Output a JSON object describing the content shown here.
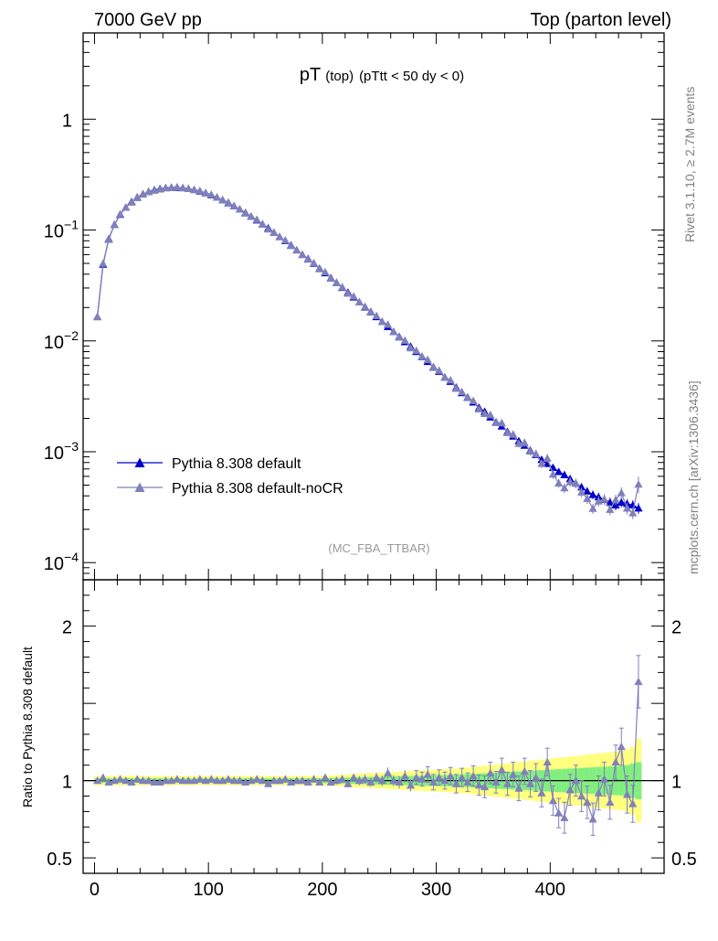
{
  "header": {
    "left": "7000 GeV pp",
    "right": "Top (parton level)"
  },
  "title": {
    "main": "pT",
    "sub1": "(top)",
    "sub2": "(pTtt < 50 dy < 0)"
  },
  "watermark": "(MC_FBA_TTBAR)",
  "side_text": {
    "rivet": "Rivet 3.1.10, ≥ 2.7M events",
    "mcplots": "mcplots.cern.ch [arXiv:1306.3436]"
  },
  "colors": {
    "default": "#0000cc",
    "nocr": "#8080bb",
    "band_outer": "#ffff80",
    "band_inner": "#80ee80"
  },
  "chart_data": [
    {
      "type": "line",
      "scale": "log",
      "xlim": [
        -10,
        500
      ],
      "ylim": [
        7e-05,
        6
      ],
      "yticks": [
        "10^-4",
        "10^-3",
        "10^-2",
        "10^-1",
        "1"
      ],
      "legend": {
        "placement": "bottom-left",
        "entries": [
          "Pythia 8.308 default",
          "Pythia 8.308 default-noCR"
        ]
      },
      "series": [
        {
          "name": "Pythia 8.308 default",
          "x": [
            2.5,
            7.5,
            12.5,
            17.5,
            22.5,
            27.5,
            32.5,
            37.5,
            42.5,
            47.5,
            52.5,
            57.5,
            62.5,
            67.5,
            72.5,
            77.5,
            82.5,
            87.5,
            92.5,
            97.5,
            102.5,
            107.5,
            112.5,
            117.5,
            122.5,
            127.5,
            132.5,
            137.5,
            142.5,
            147.5,
            152.5,
            157.5,
            162.5,
            167.5,
            172.5,
            177.5,
            182.5,
            187.5,
            192.5,
            197.5,
            202.5,
            207.5,
            212.5,
            217.5,
            222.5,
            227.5,
            232.5,
            237.5,
            242.5,
            247.5,
            252.5,
            257.5,
            262.5,
            267.5,
            272.5,
            277.5,
            282.5,
            287.5,
            292.5,
            297.5,
            302.5,
            307.5,
            312.5,
            317.5,
            322.5,
            327.5,
            332.5,
            337.5,
            342.5,
            347.5,
            352.5,
            357.5,
            362.5,
            367.5,
            372.5,
            377.5,
            382.5,
            387.5,
            392.5,
            397.5,
            402.5,
            407.5,
            412.5,
            417.5,
            422.5,
            427.5,
            432.5,
            437.5,
            442.5,
            447.5,
            452.5,
            457.5,
            462.5,
            467.5,
            472.5,
            477.5
          ],
          "values": [
            0.0165,
            0.049,
            0.083,
            0.112,
            0.138,
            0.16,
            0.18,
            0.197,
            0.211,
            0.222,
            0.23,
            0.236,
            0.24,
            0.242,
            0.242,
            0.24,
            0.236,
            0.231,
            0.224,
            0.216,
            0.207,
            0.197,
            0.187,
            0.176,
            0.165,
            0.154,
            0.143,
            0.133,
            0.123,
            0.113,
            0.104,
            0.095,
            0.087,
            0.08,
            0.073,
            0.066,
            0.06,
            0.055,
            0.05,
            0.045,
            0.041,
            0.037,
            0.0335,
            0.0303,
            0.0274,
            0.0248,
            0.0224,
            0.0202,
            0.0183,
            0.0165,
            0.0149,
            0.0134,
            0.0121,
            0.0109,
            0.0098,
            0.0089,
            0.008,
            0.0072,
            0.0065,
            0.0058,
            0.0053,
            0.0047,
            0.0043,
            0.0038,
            0.0034,
            0.0031,
            0.0028,
            0.0025,
            0.0023,
            0.00205,
            0.00185,
            0.0017,
            0.00152,
            0.00138,
            0.00125,
            0.00114,
            0.00103,
            0.00094,
            0.00085,
            0.00078,
            0.00072,
            0.00066,
            0.00062,
            0.00057,
            0.00052,
            0.00048,
            0.00044,
            0.00041,
            0.00039,
            0.00037,
            0.00035,
            0.00033,
            0.00035,
            0.00034,
            0.00033,
            0.00031
          ],
          "errors": [
            0.0003,
            0.0006,
            0.0008,
            0.001,
            0.001,
            0.0012,
            0.0013,
            0.0014,
            0.0014,
            0.0015,
            0.0015,
            0.0015,
            0.0015,
            0.0015,
            0.0015,
            0.0015,
            0.0015,
            0.0015,
            0.0015,
            0.0015,
            0.0014,
            0.0014,
            0.0014,
            0.0013,
            0.0013,
            0.0012,
            0.0012,
            0.0011,
            0.0011,
            0.001,
            0.001,
            0.0009,
            0.0009,
            0.0008,
            0.0008,
            0.0007,
            0.0007,
            0.0006,
            0.0006,
            0.0006,
            0.0005,
            0.0005,
            0.00045,
            0.00042,
            0.0004,
            0.00037,
            0.00035,
            0.00032,
            0.0003,
            0.00028,
            0.00026,
            0.00025,
            0.00023,
            0.00022,
            0.0002,
            0.00019,
            0.00018,
            0.00017,
            0.00016,
            0.00015,
            0.00014,
            0.00013,
            0.00012,
            0.00011,
            0.000105,
            0.0001,
            9.5e-05,
            9e-05,
            8.5e-05,
            8e-05,
            7.5e-05,
            7e-05,
            6.6e-05,
            6.3e-05,
            6e-05,
            5.7e-05,
            5.4e-05,
            5.2e-05,
            5e-05,
            4.8e-05,
            4.6e-05,
            4.4e-05,
            4.3e-05,
            4.2e-05,
            4e-05,
            3.9e-05,
            3.8e-05,
            3.7e-05,
            3.6e-05,
            3.5e-05,
            3.5e-05,
            3.4e-05,
            3.5e-05,
            3.4e-05,
            3.4e-05,
            3.4e-05
          ]
        },
        {
          "name": "Pythia 8.308 default-noCR",
          "x": [
            2.5,
            7.5,
            12.5,
            17.5,
            22.5,
            27.5,
            32.5,
            37.5,
            42.5,
            47.5,
            52.5,
            57.5,
            62.5,
            67.5,
            72.5,
            77.5,
            82.5,
            87.5,
            92.5,
            97.5,
            102.5,
            107.5,
            112.5,
            117.5,
            122.5,
            127.5,
            132.5,
            137.5,
            142.5,
            147.5,
            152.5,
            157.5,
            162.5,
            167.5,
            172.5,
            177.5,
            182.5,
            187.5,
            192.5,
            197.5,
            202.5,
            207.5,
            212.5,
            217.5,
            222.5,
            227.5,
            232.5,
            237.5,
            242.5,
            247.5,
            252.5,
            257.5,
            262.5,
            267.5,
            272.5,
            277.5,
            282.5,
            287.5,
            292.5,
            297.5,
            302.5,
            307.5,
            312.5,
            317.5,
            322.5,
            327.5,
            332.5,
            337.5,
            342.5,
            347.5,
            352.5,
            357.5,
            362.5,
            367.5,
            372.5,
            377.5,
            382.5,
            387.5,
            392.5,
            397.5,
            402.5,
            407.5,
            412.5,
            417.5,
            422.5,
            427.5,
            432.5,
            437.5,
            442.5,
            447.5,
            452.5,
            457.5,
            462.5,
            467.5,
            472.5,
            477.5
          ],
          "ratio": [
            1.0,
            1.02,
            0.99,
            1.0,
            1.01,
            1.0,
            0.99,
            1.01,
            1.0,
            1.0,
            0.99,
            0.99,
            1.0,
            1.0,
            1.01,
            1.0,
            1.0,
            1.0,
            1.01,
            1.0,
            1.01,
            1.0,
            1.0,
            1.01,
            1.0,
            1.0,
            0.99,
            1.0,
            1.01,
            1.0,
            0.98,
            1.0,
            1.0,
            1.01,
            0.99,
            1.0,
            1.0,
            0.99,
            1.01,
            0.99,
            1.02,
            0.99,
            1.0,
            1.01,
            0.98,
            1.02,
            1.0,
            1.01,
            0.99,
            1.02,
            1.0,
            1.05,
            1.0,
            0.99,
            1.03,
            0.97,
            1.02,
            1.01,
            1.04,
            0.99,
            1.02,
            1.0,
            1.03,
            0.98,
            1.02,
            0.99,
            1.03,
            0.97,
            0.96,
            1.05,
            0.99,
            1.07,
            0.98,
            1.04,
            0.95,
            1.06,
            0.98,
            1.02,
            0.92,
            1.12,
            0.87,
            0.79,
            0.76,
            0.94,
            1.0,
            0.9,
            0.86,
            0.75,
            0.92,
            1.01,
            0.86,
            1.12,
            1.22,
            0.91,
            0.85,
            1.64
          ],
          "ratio_err": [
            0.02,
            0.02,
            0.02,
            0.02,
            0.02,
            0.02,
            0.02,
            0.02,
            0.02,
            0.02,
            0.02,
            0.02,
            0.02,
            0.02,
            0.02,
            0.02,
            0.02,
            0.02,
            0.02,
            0.02,
            0.02,
            0.02,
            0.02,
            0.02,
            0.02,
            0.02,
            0.02,
            0.02,
            0.02,
            0.02,
            0.02,
            0.02,
            0.02,
            0.02,
            0.02,
            0.02,
            0.02,
            0.02,
            0.02,
            0.02,
            0.02,
            0.025,
            0.025,
            0.025,
            0.025,
            0.025,
            0.03,
            0.03,
            0.03,
            0.03,
            0.035,
            0.035,
            0.035,
            0.04,
            0.04,
            0.04,
            0.045,
            0.045,
            0.05,
            0.05,
            0.05,
            0.055,
            0.055,
            0.06,
            0.06,
            0.06,
            0.065,
            0.065,
            0.07,
            0.07,
            0.07,
            0.075,
            0.075,
            0.08,
            0.08,
            0.085,
            0.085,
            0.09,
            0.09,
            0.09,
            0.095,
            0.095,
            0.1,
            0.1,
            0.1,
            0.1,
            0.105,
            0.105,
            0.11,
            0.11,
            0.11,
            0.11,
            0.12,
            0.12,
            0.12,
            0.17
          ]
        }
      ]
    },
    {
      "type": "line",
      "ylabel": "Ratio to Pythia 8.308 default",
      "xlim": [
        -10,
        500
      ],
      "ylim": [
        0.4,
        2.3
      ],
      "yticks": [
        0.5,
        1,
        2
      ],
      "xticks": [
        0,
        100,
        200,
        300,
        400
      ],
      "reference_band": {
        "inner_halfwidth": [
          0.015,
          0.015,
          0.015,
          0.015,
          0.015,
          0.015,
          0.015,
          0.015,
          0.015,
          0.015,
          0.015,
          0.015,
          0.015,
          0.015,
          0.015,
          0.015,
          0.015,
          0.015,
          0.015,
          0.015,
          0.015,
          0.015,
          0.015,
          0.015,
          0.015,
          0.015,
          0.015,
          0.015,
          0.015,
          0.015,
          0.015,
          0.015,
          0.015,
          0.015,
          0.015,
          0.015,
          0.015,
          0.015,
          0.015,
          0.015,
          0.016,
          0.017,
          0.018,
          0.019,
          0.02,
          0.021,
          0.022,
          0.023,
          0.024,
          0.025,
          0.026,
          0.027,
          0.028,
          0.029,
          0.03,
          0.031,
          0.032,
          0.033,
          0.034,
          0.035,
          0.036,
          0.037,
          0.038,
          0.039,
          0.04,
          0.042,
          0.044,
          0.046,
          0.048,
          0.05,
          0.052,
          0.054,
          0.056,
          0.058,
          0.06,
          0.062,
          0.064,
          0.066,
          0.068,
          0.07,
          0.072,
          0.074,
          0.076,
          0.078,
          0.08,
          0.082,
          0.084,
          0.086,
          0.088,
          0.09,
          0.092,
          0.094,
          0.096,
          0.1,
          0.11,
          0.12
        ],
        "outer_halfwidth": [
          0.03,
          0.03,
          0.03,
          0.03,
          0.03,
          0.03,
          0.03,
          0.03,
          0.03,
          0.03,
          0.03,
          0.03,
          0.03,
          0.03,
          0.03,
          0.03,
          0.03,
          0.03,
          0.03,
          0.03,
          0.03,
          0.03,
          0.03,
          0.03,
          0.03,
          0.03,
          0.03,
          0.03,
          0.03,
          0.03,
          0.03,
          0.03,
          0.03,
          0.03,
          0.03,
          0.03,
          0.03,
          0.03,
          0.03,
          0.03,
          0.032,
          0.034,
          0.036,
          0.038,
          0.04,
          0.042,
          0.044,
          0.046,
          0.048,
          0.05,
          0.052,
          0.054,
          0.056,
          0.058,
          0.06,
          0.062,
          0.064,
          0.066,
          0.068,
          0.07,
          0.072,
          0.074,
          0.076,
          0.078,
          0.08,
          0.084,
          0.088,
          0.092,
          0.096,
          0.1,
          0.104,
          0.108,
          0.112,
          0.116,
          0.12,
          0.124,
          0.128,
          0.132,
          0.136,
          0.14,
          0.144,
          0.148,
          0.152,
          0.156,
          0.16,
          0.164,
          0.168,
          0.172,
          0.176,
          0.18,
          0.184,
          0.188,
          0.192,
          0.2,
          0.22,
          0.27
        ]
      }
    }
  ]
}
